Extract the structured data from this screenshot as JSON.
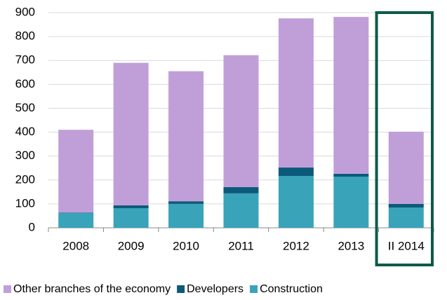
{
  "chart_data": {
    "type": "stacked_bar",
    "categories": [
      "2008",
      "2009",
      "2010",
      "2011",
      "2012",
      "2013",
      "II 2014"
    ],
    "series": [
      {
        "name": "Other branches of the economy",
        "color": "#c09fd9",
        "values": [
          346,
          596,
          544,
          552,
          624,
          656,
          302
        ]
      },
      {
        "name": "Developers",
        "color": "#0c5a79",
        "values": [
          2,
          12,
          11,
          26,
          35,
          12,
          15
        ]
      },
      {
        "name": "Construction",
        "color": "#39a3ba",
        "values": [
          62,
          82,
          100,
          144,
          217,
          214,
          85
        ]
      }
    ],
    "ylim": [
      0,
      900
    ],
    "yticks": [
      0,
      100,
      200,
      300,
      400,
      500,
      600,
      700,
      800,
      900
    ],
    "grid": true,
    "legend": "bottom",
    "highlight_index": 6,
    "highlight_color": "#0d5a4a"
  }
}
